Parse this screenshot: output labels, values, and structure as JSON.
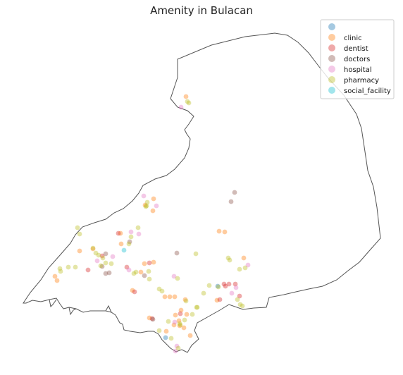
{
  "chart_data": {
    "type": "scatter",
    "title": "Amenity in Bulacan",
    "xlabel": "",
    "ylabel": "",
    "grid": false,
    "axes_visible": false,
    "legend_placement": "top-right",
    "boundary_stroke": "#555555",
    "series": [
      {
        "name": "",
        "color": "#1f77b4",
        "opacity": 0.4,
        "points": [
          [
            235,
            479
          ],
          [
            309,
            406
          ]
        ]
      },
      {
        "name": "clinic",
        "color": "#ff7f0e",
        "opacity": 0.4,
        "points": [
          [
            264,
            137
          ],
          [
            218,
            282
          ],
          [
            206,
            291
          ],
          [
            217,
            299
          ],
          [
            171,
            331
          ],
          [
            311,
            328
          ],
          [
            319,
            329
          ],
          [
            113,
            356
          ],
          [
            172,
            346
          ],
          [
            218,
            372
          ],
          [
            78,
            392
          ],
          [
            81,
            398
          ],
          [
            205,
            374
          ],
          [
            263,
            425
          ],
          [
            234,
            421
          ],
          [
            241,
            421
          ],
          [
            248,
            421
          ],
          [
            257,
            440
          ],
          [
            249,
            447
          ],
          [
            265,
            446
          ],
          [
            254,
            455
          ],
          [
            255,
            462
          ],
          [
            247,
            461
          ],
          [
            236,
            470
          ],
          [
            261,
            465
          ],
          [
            270,
            476
          ],
          [
            308,
            426
          ],
          [
            212,
            451
          ],
          [
            346,
            366
          ],
          [
            132,
            353
          ],
          [
            200,
            386
          ],
          [
            188,
            412
          ]
        ]
      },
      {
        "name": "dentist",
        "color": "#d62728",
        "opacity": 0.4,
        "points": [
          [
            125,
            383
          ],
          [
            145,
            363
          ],
          [
            180,
            379
          ],
          [
            191,
            414
          ],
          [
            212,
            373
          ],
          [
            216,
            452
          ],
          [
            256,
            445
          ],
          [
            318,
            403
          ],
          [
            325,
            403
          ],
          [
            334,
            403
          ],
          [
            340,
            420
          ],
          [
            320,
            406
          ],
          [
            312,
            425
          ],
          [
            168,
            331
          ]
        ]
      },
      {
        "name": "doctors",
        "color": "#8c564b",
        "opacity": 0.4,
        "points": [
          [
            333,
            273
          ],
          [
            328,
            286
          ],
          [
            184,
            343
          ],
          [
            150,
            360
          ],
          [
            155,
            387
          ],
          [
            145,
            378
          ],
          [
            150,
            388
          ],
          [
            251,
            359
          ],
          [
            205,
            391
          ],
          [
            217,
            453
          ]
        ]
      },
      {
        "name": "hospital",
        "color": "#e377c2",
        "opacity": 0.4,
        "points": [
          [
            257,
            152
          ],
          [
            204,
            278
          ],
          [
            222,
            292
          ],
          [
            186,
            329
          ],
          [
            197,
            332
          ],
          [
            160,
            364
          ],
          [
            138,
            370
          ],
          [
            183,
            383
          ],
          [
            247,
            392
          ],
          [
            329,
            416
          ],
          [
            335,
            408
          ],
          [
            352,
            376
          ],
          [
            251,
            491
          ],
          [
            249,
            498
          ],
          [
            248,
            457
          ]
        ]
      },
      {
        "name": "pharmacy",
        "color": "#bcbd22",
        "opacity": 0.4,
        "points": [
          [
            266,
            144
          ],
          [
            268,
            146
          ],
          [
            209,
            287
          ],
          [
            208,
            292
          ],
          [
            207,
            293
          ],
          [
            110,
            323
          ],
          [
            113,
            332
          ],
          [
            196,
            323
          ],
          [
            186,
            336
          ],
          [
            183,
            346
          ],
          [
            132,
            352
          ],
          [
            136,
            359
          ],
          [
            140,
            362
          ],
          [
            146,
            366
          ],
          [
            150,
            373
          ],
          [
            158,
            374
          ],
          [
            143,
            377
          ],
          [
            85,
            381
          ],
          [
            86,
            385
          ],
          [
            97,
            379
          ],
          [
            107,
            379
          ],
          [
            190,
            388
          ],
          [
            193,
            386
          ],
          [
            211,
            385
          ],
          [
            212,
            396
          ],
          [
            226,
            410
          ],
          [
            230,
            413
          ],
          [
            278,
            360
          ],
          [
            252,
            395
          ],
          [
            289,
            416
          ],
          [
            297,
            405
          ],
          [
            324,
            366
          ],
          [
            326,
            369
          ],
          [
            340,
            382
          ],
          [
            348,
            380
          ],
          [
            264,
            427
          ],
          [
            280,
            436
          ],
          [
            273,
            446
          ],
          [
            262,
            454
          ],
          [
            256,
            461
          ],
          [
            279,
            436
          ],
          [
            243,
            480
          ],
          [
            226,
            469
          ],
          [
            239,
            456
          ],
          [
            341,
            432
          ],
          [
            344,
            434
          ],
          [
            337,
            425
          ],
          [
            310,
            407
          ],
          [
            255,
            459
          ],
          [
            253,
            494
          ]
        ]
      },
      {
        "name": "social_facility",
        "color": "#17becf",
        "opacity": 0.4,
        "points": [
          [
            176,
            355
          ]
        ]
      }
    ]
  },
  "legend_labels": [
    "",
    "clinic",
    "dentist",
    "doctors",
    "hospital",
    "pharmacy",
    "social_facility"
  ]
}
